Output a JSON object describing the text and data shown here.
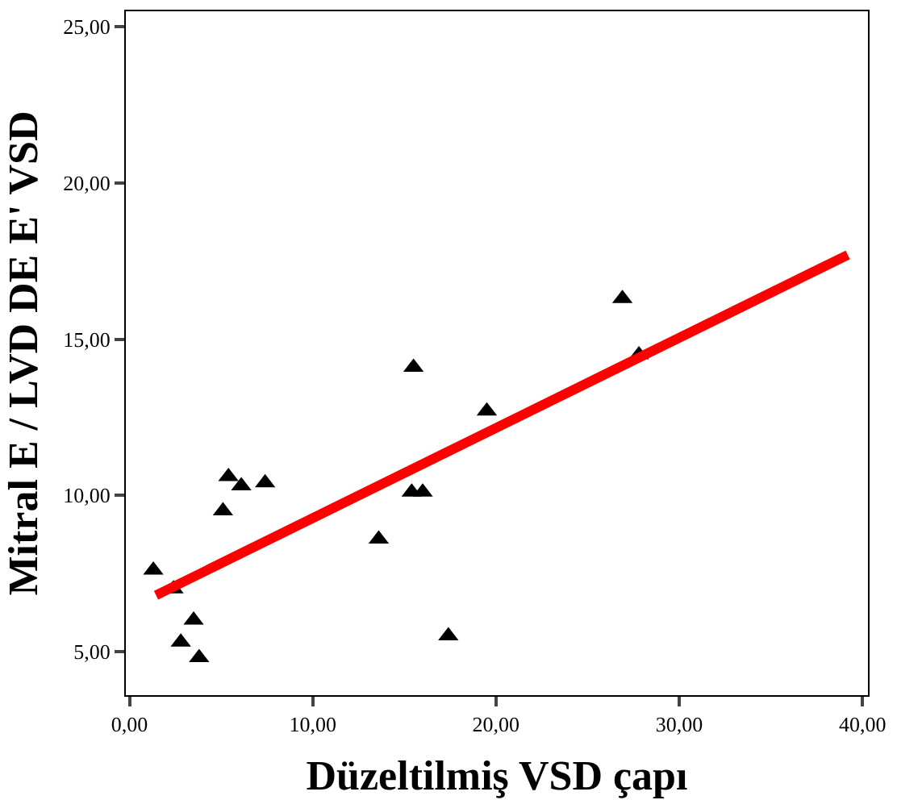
{
  "chart_data": {
    "type": "scatter",
    "xlabel": "Düzeltilmiş VSD çapı",
    "ylabel": "Mitral E / LVD DE E' VSD",
    "xlim": [
      -0.2,
      40.3
    ],
    "ylim": [
      3.6,
      25.5
    ],
    "xticks": [
      {
        "value": 0,
        "label": "0,00"
      },
      {
        "value": 10,
        "label": "10,00"
      },
      {
        "value": 20,
        "label": "20,00"
      },
      {
        "value": 30,
        "label": "30,00"
      },
      {
        "value": 40,
        "label": "40,00"
      }
    ],
    "yticks": [
      {
        "value": 5,
        "label": "5,00"
      },
      {
        "value": 10,
        "label": "10,00"
      },
      {
        "value": 15,
        "label": "15,00"
      },
      {
        "value": 20,
        "label": "20,00"
      },
      {
        "value": 25,
        "label": "25,00"
      }
    ],
    "series": [
      {
        "color": "#000000",
        "marker": "triangle",
        "x": [
          1.3,
          2.4,
          3.5,
          2.8,
          3.8,
          5.1,
          5.4,
          6.1,
          7.4,
          13.6,
          15.4,
          16.0,
          15.5,
          17.4,
          19.5,
          26.9,
          27.8
        ],
        "values": [
          7.6,
          7.0,
          6.0,
          5.3,
          4.8,
          9.5,
          10.6,
          10.3,
          10.4,
          8.6,
          10.1,
          10.1,
          14.1,
          5.5,
          12.7,
          16.3,
          14.5
        ]
      },
      {
        "type": "line",
        "color": "#ff0000",
        "marker": "none",
        "line_style": "solid",
        "x": [
          1.45,
          39.2
        ],
        "values": [
          6.8,
          17.7
        ]
      }
    ]
  }
}
